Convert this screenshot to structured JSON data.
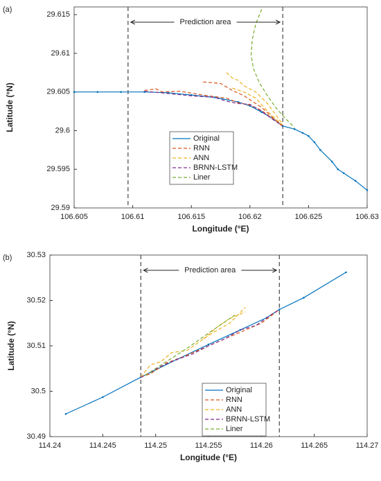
{
  "chart_data": [
    {
      "type": "line",
      "panel_label": "(a)",
      "xlabel": "Longitude (°E)",
      "ylabel": "Latitude (°N)",
      "annotation": "Prediction area",
      "xlim": [
        106.605,
        106.63
      ],
      "xticks": [
        106.605,
        106.61,
        106.615,
        106.62,
        106.625,
        106.63
      ],
      "ylim": [
        29.59,
        29.616
      ],
      "yticks": [
        29.59,
        29.595,
        29.6,
        29.605,
        29.61,
        29.615
      ],
      "vlines": [
        106.6096,
        106.6228
      ],
      "grid": false,
      "legend": "south",
      "series": [
        {
          "name": "Original",
          "color": "#0072bd",
          "style": "solid",
          "x": [
            106.605,
            106.607,
            106.609,
            106.611,
            106.613,
            106.615,
            106.617,
            106.619,
            106.62,
            106.621,
            106.622,
            106.6228,
            106.6238,
            106.6245,
            106.625,
            106.6255,
            106.626,
            106.627,
            106.6275,
            106.628,
            106.629,
            106.63
          ],
          "values": [
            29.605,
            29.605,
            29.605,
            29.605,
            29.6049,
            29.6046,
            29.6043,
            29.6037,
            29.6032,
            29.6024,
            29.6015,
            29.6006,
            29.6002,
            29.5997,
            29.5993,
            29.5985,
            29.5975,
            29.596,
            29.595,
            29.5945,
            29.5935,
            29.5923
          ]
        },
        {
          "name": "RNN",
          "color": "#d95319",
          "style": "dashed",
          "x": [
            106.611,
            106.612,
            106.6125,
            106.614,
            106.616,
            106.618,
            106.619,
            106.62,
            106.621,
            106.622,
            106.6228,
            null,
            106.616,
            106.6175,
            106.6185,
            106.6195,
            106.621,
            106.6228
          ],
          "values": [
            29.6052,
            29.6054,
            29.605,
            29.6051,
            29.6046,
            29.6042,
            29.6036,
            29.6033,
            29.6026,
            29.6015,
            29.6007,
            null,
            29.6063,
            29.6061,
            29.6052,
            29.6045,
            29.603,
            29.6005
          ]
        },
        {
          "name": "ANN",
          "color": "#edb120",
          "style": "dashed",
          "x": [
            106.618,
            106.6185,
            106.619,
            106.6195,
            106.6205,
            106.6215,
            106.6228,
            null,
            106.6185,
            106.6195,
            106.6205,
            106.6215,
            106.6228
          ],
          "values": [
            29.6075,
            29.6068,
            29.6065,
            29.6058,
            29.605,
            29.6035,
            29.6008,
            null,
            29.6055,
            29.605,
            29.6042,
            29.6025,
            29.6007
          ]
        },
        {
          "name": "BRNN-LSTM",
          "color": "#7e2f8e",
          "style": "dashed",
          "x": [
            106.611,
            106.613,
            106.615,
            106.617,
            106.618,
            106.619,
            106.62,
            106.621,
            106.622,
            106.6228
          ],
          "values": [
            29.6051,
            29.6048,
            29.6045,
            29.6043,
            29.6038,
            29.6035,
            29.6034,
            29.6025,
            29.6014,
            29.6006
          ]
        },
        {
          "name": "Liner",
          "color": "#77ac30",
          "style": "dashed",
          "x": [
            106.621,
            106.6205,
            106.6202,
            106.6201,
            106.6203,
            106.6208,
            106.6215,
            106.6222,
            106.623,
            106.6238
          ],
          "values": [
            29.6157,
            29.6138,
            29.6118,
            29.6098,
            29.608,
            29.6062,
            29.6045,
            29.603,
            29.6016,
            29.6004
          ]
        }
      ]
    },
    {
      "type": "line",
      "panel_label": "(b)",
      "xlabel": "Longitude (°E)",
      "ylabel": "Latitude (°N)",
      "annotation": "Prediction area",
      "xlim": [
        114.24,
        114.27
      ],
      "xticks": [
        114.24,
        114.245,
        114.25,
        114.255,
        114.26,
        114.265,
        114.27
      ],
      "ylim": [
        30.49,
        30.53
      ],
      "yticks": [
        30.49,
        30.5,
        30.51,
        30.52,
        30.53
      ],
      "vlines": [
        114.2486,
        114.2617
      ],
      "grid": false,
      "legend": "south",
      "series": [
        {
          "name": "Original",
          "color": "#0072bd",
          "style": "solid",
          "x": [
            114.2415,
            114.245,
            114.2486,
            114.252,
            114.255,
            114.258,
            114.2605,
            114.2617,
            114.264,
            114.268
          ],
          "values": [
            30.495,
            30.4987,
            30.5031,
            30.507,
            30.5103,
            30.5135,
            30.5162,
            30.518,
            30.5206,
            30.5262
          ]
        },
        {
          "name": "RNN",
          "color": "#d95319",
          "style": "dashed",
          "x": [
            114.2486,
            114.2495,
            114.251,
            114.2525,
            114.254,
            114.2555,
            114.257,
            114.2585,
            114.26,
            114.2617
          ],
          "values": [
            30.5032,
            30.5038,
            30.5062,
            30.5075,
            30.509,
            30.5105,
            30.512,
            30.5135,
            30.515,
            30.518
          ]
        },
        {
          "name": "ANN",
          "color": "#edb120",
          "style": "dashed",
          "x": [
            114.2486,
            114.2495,
            114.2505,
            114.2515,
            114.253,
            114.2545,
            114.2555,
            114.257,
            114.2585,
            null,
            114.2545,
            114.256,
            114.257,
            114.2585
          ],
          "values": [
            30.5031,
            30.5058,
            30.5065,
            30.5085,
            30.509,
            30.5115,
            30.513,
            30.515,
            30.5185,
            null,
            30.5115,
            30.5145,
            30.516,
            30.5175
          ]
        },
        {
          "name": "BRNN-LSTM",
          "color": "#7e2f8e",
          "style": "dashed",
          "x": [
            114.2486,
            114.2505,
            114.252,
            114.2535,
            114.255,
            114.2565,
            114.258,
            114.2595,
            114.261,
            114.2617
          ],
          "values": [
            30.503,
            30.5055,
            30.507,
            30.5082,
            30.51,
            30.5115,
            30.5135,
            30.5145,
            30.517,
            30.518
          ]
        },
        {
          "name": "Liner",
          "color": "#77ac30",
          "style": "dashed",
          "x": [
            114.249,
            114.251,
            114.253,
            114.255,
            114.2575
          ],
          "values": [
            30.5035,
            30.5065,
            30.5095,
            30.5128,
            30.5168
          ]
        }
      ]
    }
  ]
}
